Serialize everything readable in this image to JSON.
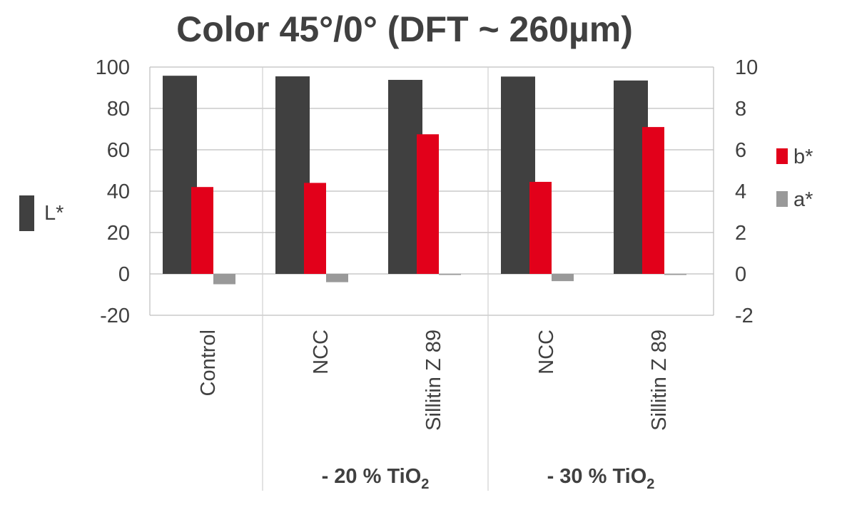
{
  "chart_data": {
    "type": "bar",
    "title": "Color 45°/0° (DFT ~ 260µm)",
    "categories": [
      "Control",
      "NCC",
      "Sillitin Z 89",
      "NCC",
      "Sillitin Z 89"
    ],
    "groups": [
      {
        "label": "- 20 % TiO",
        "subscript": "2",
        "from": 1,
        "to": 2
      },
      {
        "label": "- 30 % TiO",
        "subscript": "2",
        "from": 3,
        "to": 4
      }
    ],
    "y_left": {
      "ylim": [
        -20,
        100
      ],
      "ticks": [
        -20,
        0,
        20,
        40,
        60,
        80,
        100
      ]
    },
    "y_right": {
      "ylim": [
        -2,
        10
      ],
      "ticks": [
        -2,
        0,
        2,
        4,
        6,
        8,
        10
      ]
    },
    "grid": true,
    "series": [
      {
        "name": "L*",
        "axis": "left",
        "color": "#404040",
        "values": [
          95.8,
          95.5,
          93.8,
          95.4,
          93.5
        ]
      },
      {
        "name": "b*",
        "axis": "right",
        "color": "#e2001a",
        "values": [
          4.2,
          4.4,
          6.75,
          4.45,
          7.1
        ]
      },
      {
        "name": "a*",
        "axis": "right",
        "color": "#999999",
        "values": [
          -0.5,
          -0.4,
          -0.05,
          -0.35,
          -0.05
        ]
      }
    ],
    "legend": {
      "left": [
        "L*"
      ],
      "right": [
        "b*",
        "a*"
      ]
    }
  }
}
